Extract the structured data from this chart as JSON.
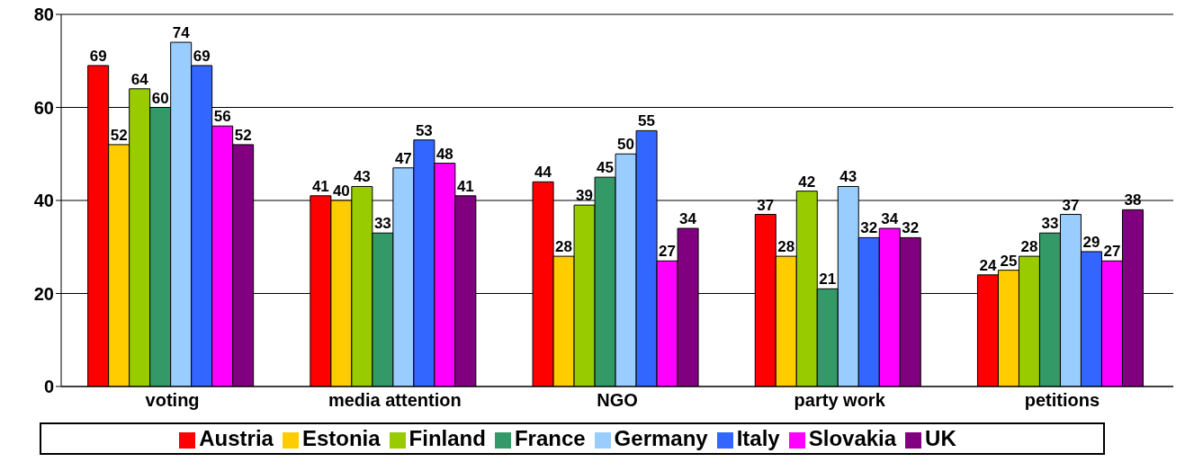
{
  "chart_data": {
    "type": "bar",
    "categories": [
      "voting",
      "media attention",
      "NGO",
      "party work",
      "petitions"
    ],
    "series": [
      {
        "name": "Austria",
        "color": "#ff0000",
        "values": [
          69,
          41,
          44,
          37,
          24
        ]
      },
      {
        "name": "Estonia",
        "color": "#ffcc00",
        "values": [
          52,
          40,
          28,
          28,
          25
        ]
      },
      {
        "name": "Finland",
        "color": "#99cc00",
        "values": [
          64,
          43,
          39,
          42,
          28
        ]
      },
      {
        "name": "France",
        "color": "#339966",
        "values": [
          60,
          33,
          45,
          21,
          33
        ]
      },
      {
        "name": "Germany",
        "color": "#99ccff",
        "values": [
          74,
          47,
          50,
          43,
          37
        ]
      },
      {
        "name": "Italy",
        "color": "#3366ff",
        "values": [
          69,
          53,
          55,
          32,
          29
        ]
      },
      {
        "name": "Slovakia",
        "color": "#ff00ff",
        "values": [
          56,
          48,
          27,
          34,
          27
        ]
      },
      {
        "name": "UK",
        "color": "#800080",
        "values": [
          52,
          41,
          34,
          32,
          38
        ]
      }
    ],
    "ylim": [
      0,
      80
    ],
    "yticks": [
      0,
      20,
      40,
      60,
      80
    ],
    "grid": "y",
    "legend": "bottom",
    "data_labels": true
  }
}
